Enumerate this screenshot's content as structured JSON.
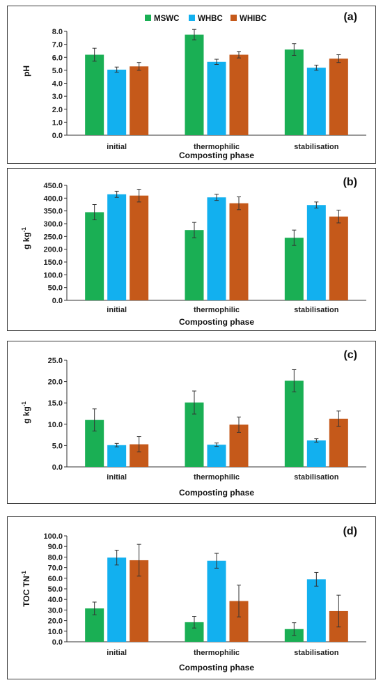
{
  "legend": {
    "colors": [
      "#1aaf54",
      "#12b0ef",
      "#c5591a"
    ]
  },
  "chart_data": [
    {
      "type": "bar",
      "panel_label": "(a)",
      "title": "",
      "xlabel": "Composting phase",
      "ylabel": "pH",
      "ylabel_sup": "",
      "categories": [
        "initial",
        "thermophilic",
        "stabilisation"
      ],
      "ylim": [
        0,
        8
      ],
      "yticks": [
        "0.0",
        "1.0",
        "2.0",
        "3.0",
        "4.0",
        "5.0",
        "6.0",
        "7.0",
        "8.0"
      ],
      "show_legend": true,
      "series": [
        {
          "name": "MSWC",
          "values": [
            6.2,
            7.75,
            6.6
          ],
          "errors": [
            0.5,
            0.4,
            0.45
          ]
        },
        {
          "name": "WHBC",
          "values": [
            5.05,
            5.65,
            5.2
          ],
          "errors": [
            0.2,
            0.2,
            0.2
          ]
        },
        {
          "name": "WHIBC",
          "values": [
            5.3,
            6.2,
            5.9
          ],
          "errors": [
            0.3,
            0.25,
            0.3
          ]
        }
      ]
    },
    {
      "type": "bar",
      "panel_label": "(b)",
      "title": "",
      "xlabel": "Composting phase",
      "ylabel": "g kg",
      "ylabel_sup": "-1",
      "categories": [
        "initial",
        "thermophilic",
        "stabilisation"
      ],
      "ylim": [
        0,
        450
      ],
      "yticks": [
        "0.0",
        "50.0",
        "100.0",
        "150.0",
        "200.0",
        "250.0",
        "300.0",
        "350.0",
        "400.0",
        "450.0"
      ],
      "show_legend": false,
      "series": [
        {
          "name": "MSWC",
          "values": [
            345,
            275,
            245
          ],
          "errors": [
            30,
            30,
            30
          ]
        },
        {
          "name": "WHBC",
          "values": [
            415,
            403,
            373
          ],
          "errors": [
            12,
            12,
            12
          ]
        },
        {
          "name": "WHIBC",
          "values": [
            410,
            380,
            328
          ],
          "errors": [
            25,
            25,
            25
          ]
        }
      ]
    },
    {
      "type": "bar",
      "panel_label": "(c)",
      "title": "",
      "xlabel": "Composting phase",
      "ylabel": "g kg",
      "ylabel_sup": "-1",
      "categories": [
        "initial",
        "thermophilic",
        "stabilisation"
      ],
      "ylim": [
        0,
        25
      ],
      "yticks": [
        "0.0",
        "5.0",
        "10.0",
        "15.0",
        "20.0",
        "25.0"
      ],
      "show_legend": false,
      "series": [
        {
          "name": "MSWC",
          "values": [
            11.0,
            15.1,
            20.2
          ],
          "errors": [
            2.6,
            2.7,
            2.6
          ]
        },
        {
          "name": "WHBC",
          "values": [
            5.1,
            5.2,
            6.2
          ],
          "errors": [
            0.4,
            0.4,
            0.4
          ]
        },
        {
          "name": "WHIBC",
          "values": [
            5.3,
            9.9,
            11.3
          ],
          "errors": [
            1.8,
            1.8,
            1.8
          ]
        }
      ]
    },
    {
      "type": "bar",
      "panel_label": "(d)",
      "title": "",
      "xlabel": "Composting phase",
      "ylabel": "TOC TN",
      "ylabel_sup": "-1",
      "categories": [
        "initial",
        "thermophilic",
        "stabilisation"
      ],
      "ylim": [
        0,
        100
      ],
      "yticks": [
        "0.0",
        "10.0",
        "20.0",
        "30.0",
        "40.0",
        "50.0",
        "60.0",
        "70.0",
        "80.0",
        "90.0",
        "100.0"
      ],
      "show_legend": false,
      "series": [
        {
          "name": "MSWC",
          "values": [
            31.5,
            18.5,
            12.0
          ],
          "errors": [
            6,
            5.5,
            6
          ]
        },
        {
          "name": "WHBC",
          "values": [
            79.5,
            76.5,
            59.0
          ],
          "errors": [
            7,
            7,
            6.5
          ]
        },
        {
          "name": "WHIBC",
          "values": [
            77.0,
            38.5,
            29.0
          ],
          "errors": [
            15,
            15,
            15
          ]
        }
      ]
    }
  ]
}
